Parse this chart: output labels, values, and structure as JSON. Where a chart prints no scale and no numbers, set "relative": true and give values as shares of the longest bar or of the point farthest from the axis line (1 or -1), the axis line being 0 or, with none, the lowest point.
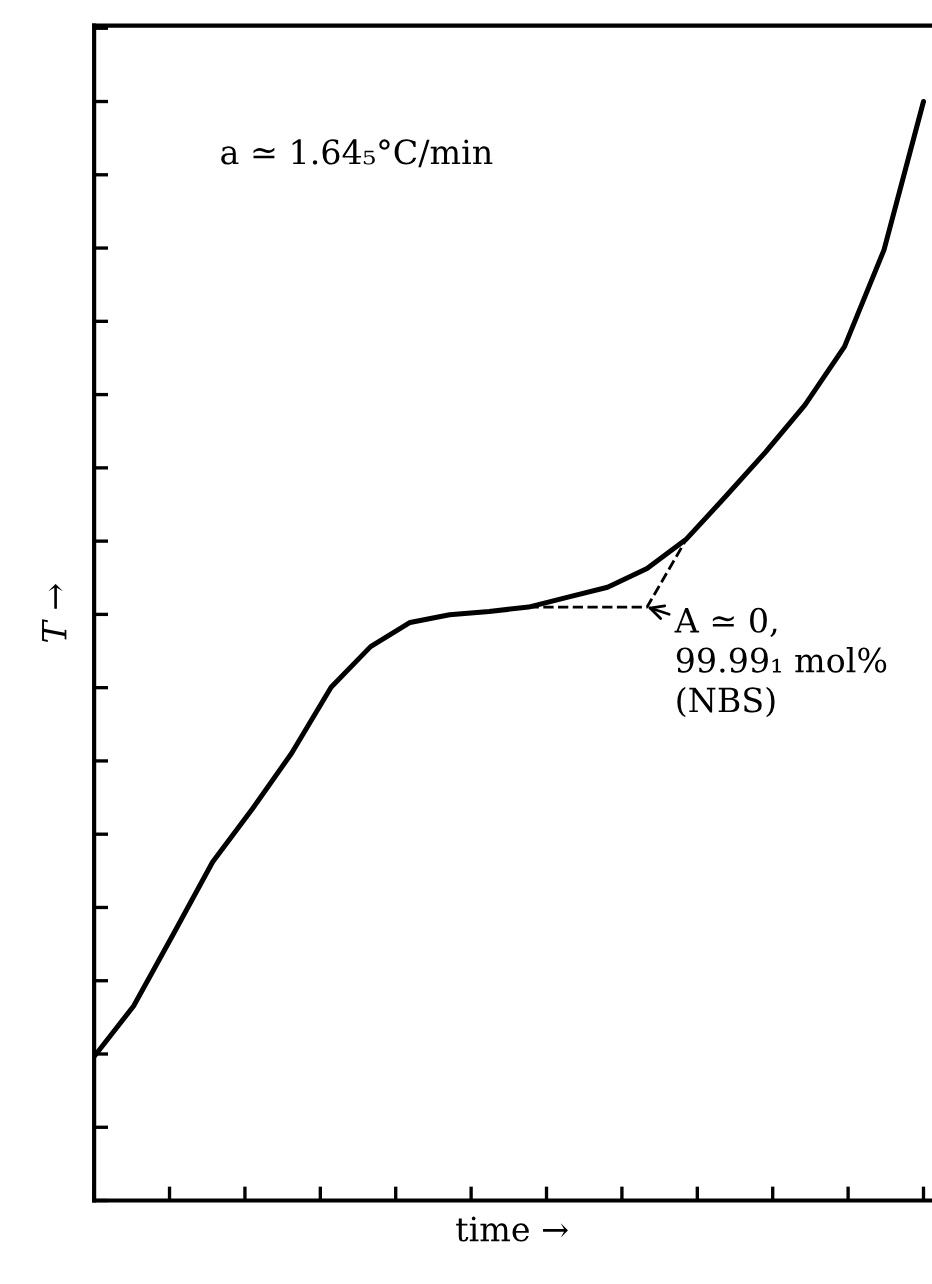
{
  "chart_data": {
    "type": "line",
    "relative": true,
    "xlabel": "time →",
    "ylabel": "T →",
    "grid": false,
    "legend": false,
    "categories": [
      null,
      null,
      null,
      null,
      null,
      null,
      null,
      null,
      null,
      null,
      null,
      null,
      null,
      null,
      null,
      null,
      null,
      null,
      null,
      null,
      null,
      null
    ],
    "series": [
      {
        "color": "#000000",
        "line_style": "solid",
        "values": [
          0.131,
          0.177,
          0.242,
          0.308,
          0.356,
          0.407,
          0.467,
          0.504,
          0.526,
          0.533,
          0.536,
          0.54,
          0.549,
          0.558,
          0.575,
          0.602,
          0.641,
          0.681,
          0.724,
          0.777,
          0.865,
          1.0
        ]
      },
      {
        "color": "#000000",
        "line_style": "dashed",
        "values": [
          null,
          null,
          null,
          null,
          null,
          null,
          null,
          null,
          null,
          null,
          null,
          0.54,
          null,
          null,
          0.54,
          0.602,
          null,
          null,
          null,
          null,
          null,
          null
        ]
      }
    ],
    "annotations": [
      "a ≃ 1.64₅°C/min",
      "A ≃ 0,\n99.99₁ mol%\n(NBS)"
    ]
  }
}
